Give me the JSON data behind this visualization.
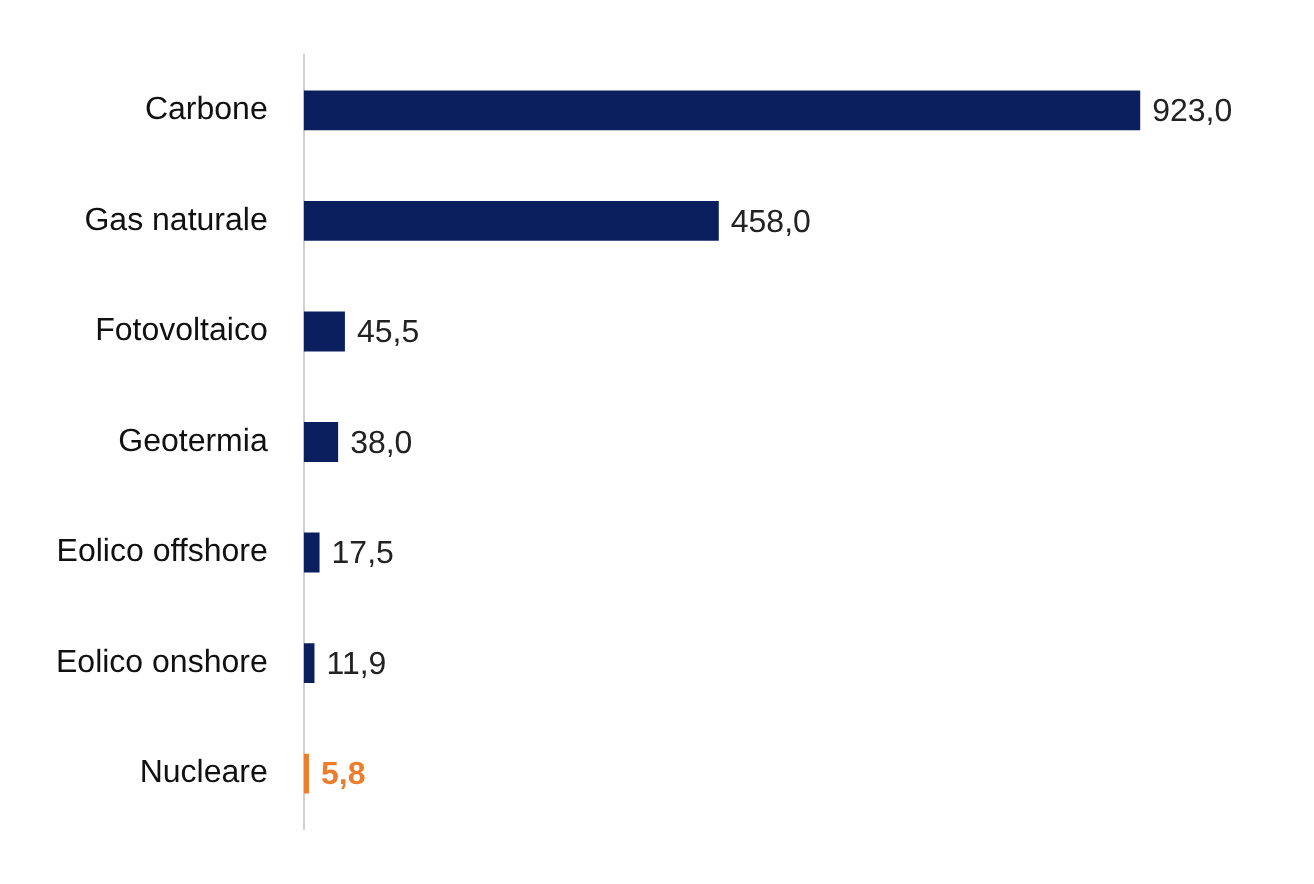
{
  "chart_data": {
    "type": "bar",
    "orientation": "horizontal",
    "categories": [
      "Carbone",
      "Gas naturale",
      "Fotovoltaico",
      "Geotermia",
      "Eolico offshore",
      "Eolico onshore",
      "Nucleare"
    ],
    "values": [
      923.0,
      458.0,
      45.5,
      38.0,
      17.5,
      11.9,
      5.8
    ],
    "colors": [
      "#0b1f5e",
      "#0b1f5e",
      "#0b1f5e",
      "#0b1f5e",
      "#0b1f5e",
      "#0b1f5e",
      "#ee7d2b"
    ],
    "value_labels": [
      "923,0",
      "458,0",
      "45,5",
      "38,0",
      "17,5",
      "11,9",
      "5,8"
    ],
    "legend": false
  }
}
